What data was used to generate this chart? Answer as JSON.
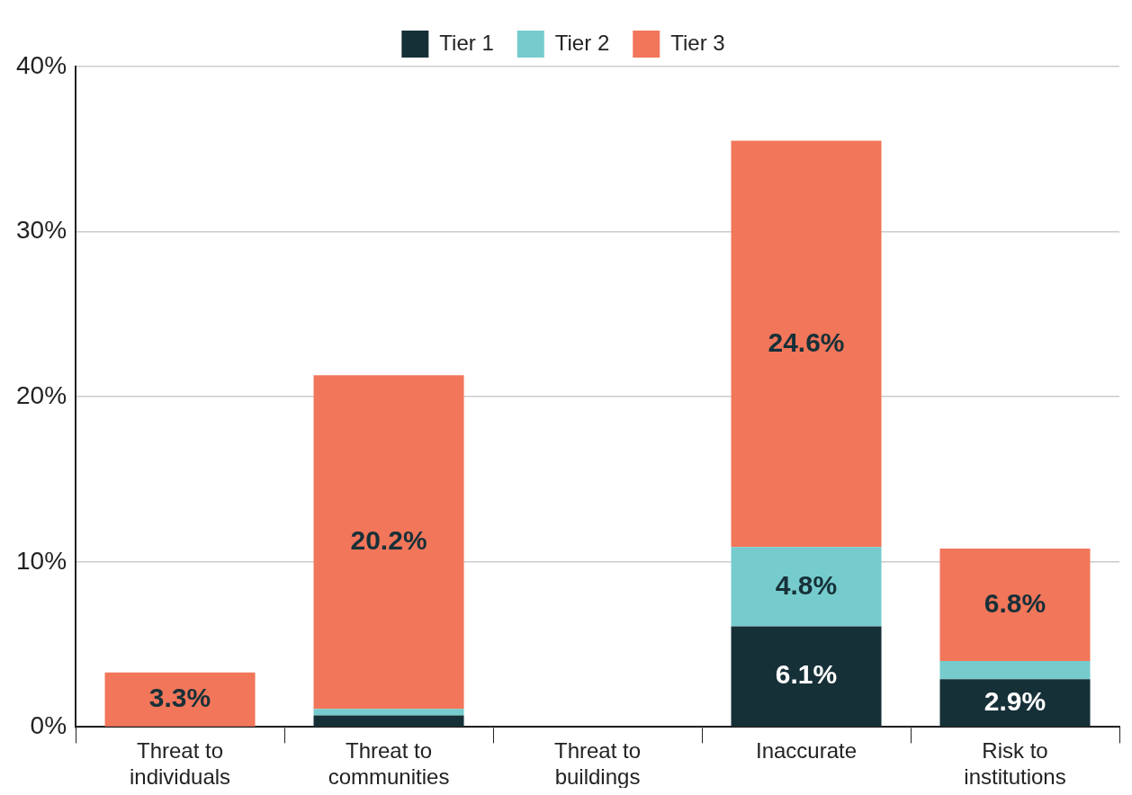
{
  "chart_data": {
    "type": "bar",
    "stacked": true,
    "categories": [
      "Threat to individuals",
      "Threat to communities",
      "Threat to buildings",
      "Inaccurate",
      "Risk to institutions"
    ],
    "series": [
      {
        "name": "Tier 1",
        "color": "#163038",
        "values": [
          0,
          0.7,
          0,
          6.1,
          2.9
        ],
        "value_labels": [
          null,
          null,
          null,
          "6.1%",
          "2.9%"
        ]
      },
      {
        "name": "Tier 2",
        "color": "#76cbcd",
        "values": [
          0,
          0.4,
          0,
          4.8,
          1.1
        ],
        "value_labels": [
          null,
          null,
          null,
          "4.8%",
          null
        ]
      },
      {
        "name": "Tier 3",
        "color": "#f2765a",
        "values": [
          3.3,
          20.2,
          0,
          24.6,
          6.8
        ],
        "value_labels": [
          "3.3%",
          "20.2%",
          null,
          "24.6%",
          "6.8%"
        ]
      }
    ],
    "ylim": [
      0,
      40
    ],
    "yticks": [
      {
        "value": 0,
        "label": "0%"
      },
      {
        "value": 10,
        "label": "10%"
      },
      {
        "value": 20,
        "label": "20%"
      },
      {
        "value": 30,
        "label": "30%"
      },
      {
        "value": 40,
        "label": "40%"
      }
    ],
    "grid": "y",
    "legend": "top"
  }
}
